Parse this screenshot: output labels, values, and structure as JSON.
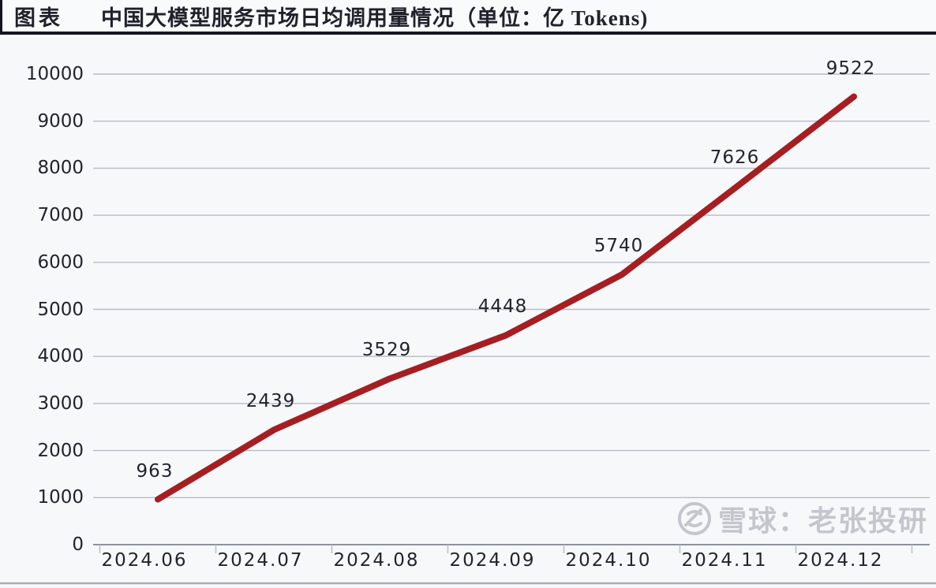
{
  "header": {
    "label": "图表",
    "title": "中国大模型服务市场日均调用量情况（单位：亿 Tokens)"
  },
  "watermark": {
    "logo": "xueqiu-snowball-logo",
    "text": "雪球：老张投研"
  },
  "chart_data": {
    "type": "line",
    "title": "中国大模型服务市场日均调用量情况（单位：亿 Tokens)",
    "categories": [
      "2024.06",
      "2024.07",
      "2024.08",
      "2024.09",
      "2024.10",
      "2024.11",
      "2024.12"
    ],
    "series": [
      {
        "name": "日均调用量",
        "values": [
          963,
          2439,
          3529,
          4448,
          5740,
          7626,
          9522
        ]
      }
    ],
    "data_labels": [
      963,
      2439,
      3529,
      4448,
      5740,
      7626,
      9522
    ],
    "xlabel": "",
    "ylabel": "",
    "ylim": [
      0,
      10000
    ],
    "ytick_step": 1000,
    "grid": true,
    "legend": false,
    "line_color": "#a51e22",
    "grid_color": "#b7bcc4",
    "axis_color": "#8d939c",
    "text_color": "#23232e"
  }
}
